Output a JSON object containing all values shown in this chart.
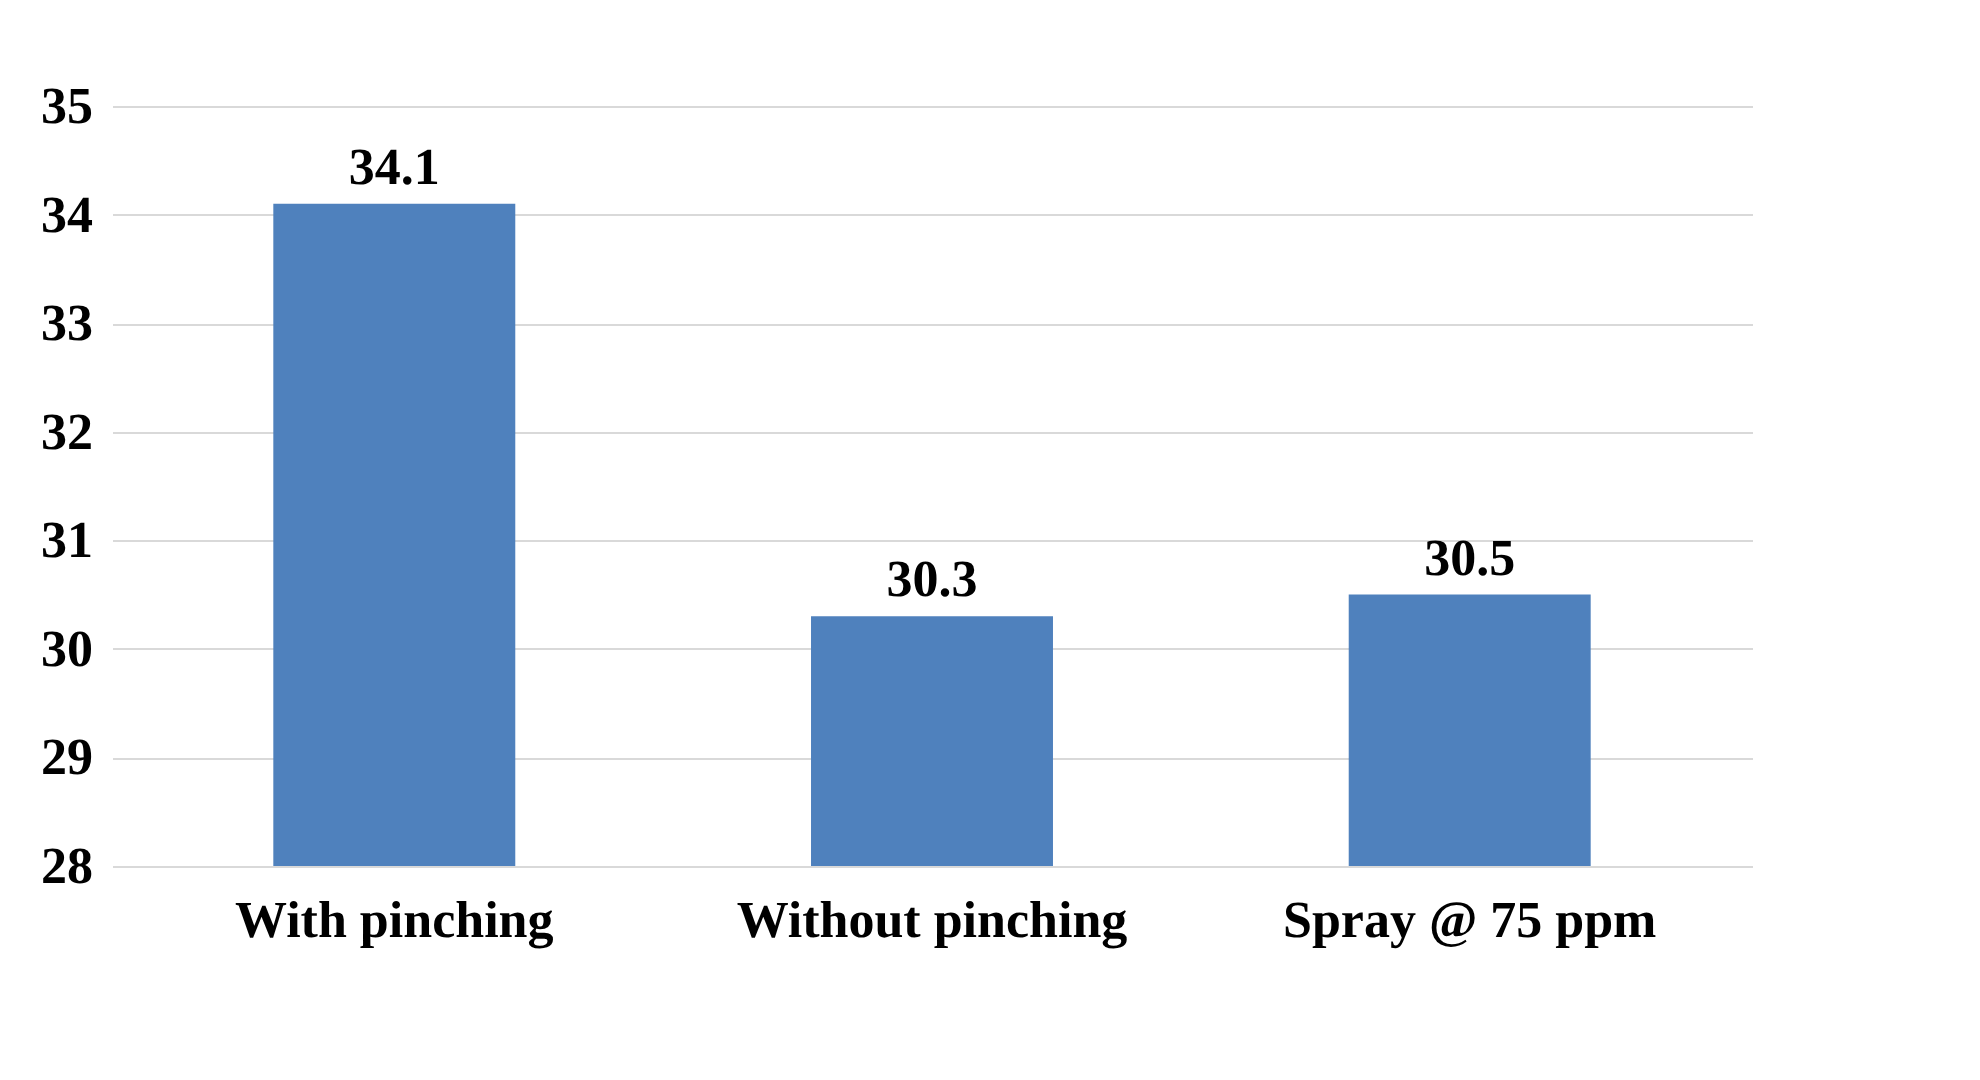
{
  "chart_data": {
    "type": "bar",
    "categories": [
      "With pinching",
      "Without pinching",
      "Spray @ 75 ppm"
    ],
    "values": [
      34.1,
      30.3,
      30.5
    ],
    "color": "#4f81bd",
    "ylim": [
      28,
      35
    ],
    "yticks": [
      28,
      29,
      30,
      31,
      32,
      33,
      34,
      35
    ],
    "grid": "y",
    "data_labels": true
  }
}
